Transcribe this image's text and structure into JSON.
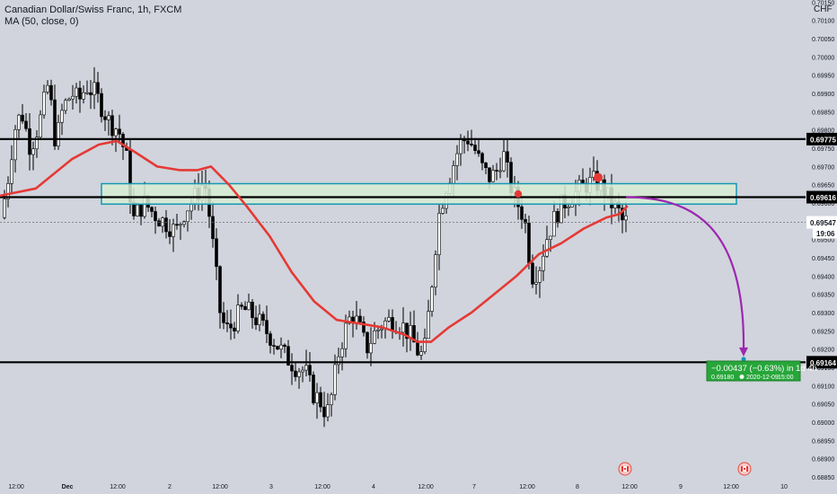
{
  "header": {
    "symbol_title": "Canadian Dollar/Swiss Franc, 1h, FXCM",
    "indicator": "MA (50, close, 0)"
  },
  "currency": "CHF",
  "colors": {
    "background": "#d1d4dc",
    "candle_up": "#ffffff",
    "candle_down": "#000000",
    "ma_line": "#e53935",
    "zone_fill": "#d7ecd3",
    "zone_border": "#1597b4",
    "arrow": "#9c27b0",
    "target_box": "#27a63a"
  },
  "chart_data": {
    "type": "candlestick",
    "symbol": "Canadian Dollar/Swiss Franc",
    "timeframe": "1h",
    "ylim": [
      0.6885,
      0.7015
    ],
    "y_ticks": [
      "0.70150",
      "0.70100",
      "0.70050",
      "0.70000",
      "0.69950",
      "0.69900",
      "0.69850",
      "0.69800",
      "0.69750",
      "0.69700",
      "0.69650",
      "0.69600",
      "0.69550",
      "0.69500",
      "0.69450",
      "0.69400",
      "0.69350",
      "0.69300",
      "0.69250",
      "0.69200",
      "0.69150",
      "0.69100",
      "0.69050",
      "0.69000",
      "0.68950",
      "0.68900",
      "0.68850"
    ],
    "x_ticks": [
      "12:00",
      "Dec",
      "12:00",
      "2",
      "12:00",
      "3",
      "12:00",
      "4",
      "12:00",
      "7",
      "12:00",
      "8",
      "12:00",
      "9",
      "12:00",
      "10"
    ],
    "ma_points": [
      [
        0,
        0.6962
      ],
      [
        40,
        0.6964
      ],
      [
        80,
        0.6972
      ],
      [
        110,
        0.6976
      ],
      [
        130,
        0.6977
      ],
      [
        150,
        0.6974
      ],
      [
        175,
        0.697
      ],
      [
        200,
        0.6969
      ],
      [
        220,
        0.6969
      ],
      [
        235,
        0.697
      ],
      [
        255,
        0.6965
      ],
      [
        275,
        0.6959
      ],
      [
        300,
        0.6951
      ],
      [
        325,
        0.6941
      ],
      [
        350,
        0.6933
      ],
      [
        375,
        0.6928
      ],
      [
        400,
        0.6927
      ],
      [
        425,
        0.6926
      ],
      [
        450,
        0.6924
      ],
      [
        465,
        0.6922
      ],
      [
        480,
        0.6922
      ],
      [
        500,
        0.6926
      ],
      [
        525,
        0.693
      ],
      [
        550,
        0.6935
      ],
      [
        575,
        0.694
      ],
      [
        600,
        0.6946
      ],
      [
        625,
        0.6949
      ],
      [
        650,
        0.6953
      ],
      [
        675,
        0.6956
      ],
      [
        690,
        0.6957
      ],
      [
        698,
        0.6959
      ]
    ],
    "candles": [],
    "horizontal_levels": [
      {
        "price": 0.69775,
        "label": "0.69775"
      },
      {
        "price": 0.69616,
        "label": "0.69616"
      },
      {
        "price": 0.69164,
        "label": "0.69164"
      }
    ],
    "current_price": {
      "price": 0.69547,
      "label": "0.69547",
      "countdown": "19:06"
    },
    "zone": {
      "top": 0.69653,
      "bottom": 0.69597,
      "x_start": 113,
      "x_end": 820
    },
    "projection": {
      "change": "−0.00437 (−0.63%) in 1d 4h",
      "target_price": "0.69180",
      "date": "2020-12-09",
      "time": "15:00"
    }
  }
}
